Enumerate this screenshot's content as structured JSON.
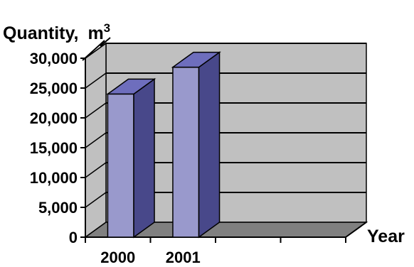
{
  "chart_data": {
    "type": "bar",
    "style": "3d",
    "title_fragment": "...",
    "ylabel_main": "Quantity,",
    "ylabel_unit": "m",
    "ylabel_unit_power": "3",
    "xlabel": "Year",
    "categories": [
      "2000",
      "2001",
      "",
      ""
    ],
    "values": [
      24000,
      28500,
      null,
      null
    ],
    "ylim": [
      0,
      30000
    ],
    "yticks": [
      0,
      5000,
      10000,
      15000,
      20000,
      25000,
      30000
    ],
    "ytick_labels": [
      "0",
      "5,000",
      "10,000",
      "15,000",
      "20,000",
      "25,000",
      "30,000"
    ],
    "grid": true,
    "legend": "none",
    "colors": {
      "bar_front": "#9999cc",
      "bar_side": "#48488a",
      "bar_top": "#6e6ebd",
      "wall": "#c0c0c0",
      "floor": "#808080"
    }
  }
}
